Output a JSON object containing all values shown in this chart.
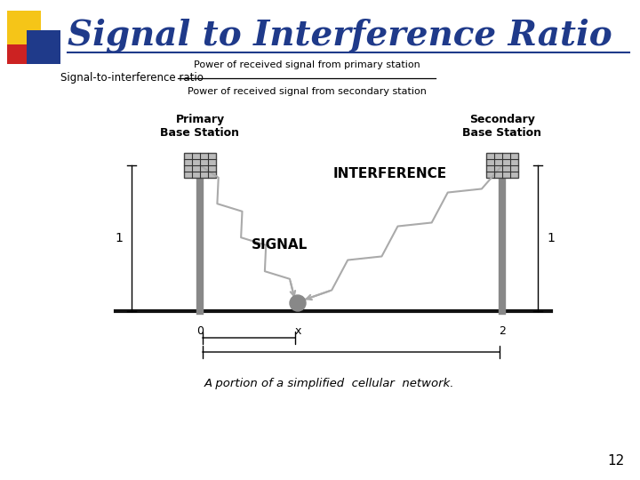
{
  "title": "Signal to Interference Ratio",
  "title_color": "#1F3A8A",
  "title_fontsize": 28,
  "background_color": "#FFFFFF",
  "page_number": "12",
  "formula_label": "Signal-to-interference ratio",
  "formula_numerator": "Power of received signal from primary station",
  "formula_denominator": "Power of received signal from secondary station",
  "primary_label": "Primary\nBase Station",
  "secondary_label": "Secondary\nBase Station",
  "signal_label": "SIGNAL",
  "interference_label": "INTERFERENCE",
  "caption": "A portion of a simplified  cellular  network.",
  "label_1_left": "1",
  "label_1_right": "1",
  "label_0": "0",
  "label_x": "x",
  "label_2": "2",
  "square_yellow": "#F5C518",
  "square_blue": "#1F3A8A",
  "square_red": "#CC2222",
  "tower_color": "#888888",
  "tower_detail_color": "#333333",
  "signal_color": "#AAAAAA",
  "ground_color": "#111111"
}
